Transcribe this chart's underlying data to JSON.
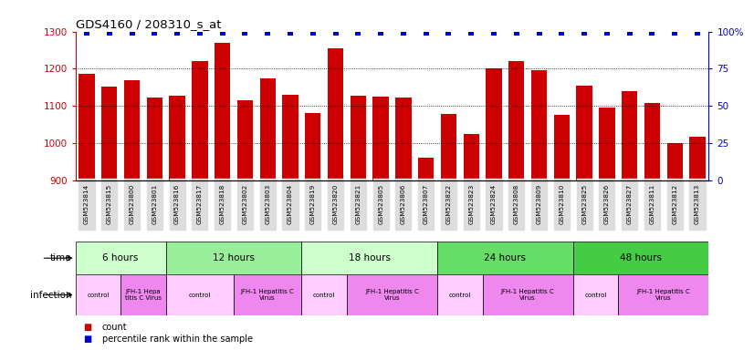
{
  "title": "GDS4160 / 208310_s_at",
  "samples": [
    "GSM523814",
    "GSM523815",
    "GSM523800",
    "GSM523801",
    "GSM523816",
    "GSM523817",
    "GSM523818",
    "GSM523802",
    "GSM523803",
    "GSM523804",
    "GSM523819",
    "GSM523820",
    "GSM523821",
    "GSM523805",
    "GSM523806",
    "GSM523807",
    "GSM523822",
    "GSM523823",
    "GSM523824",
    "GSM523808",
    "GSM523809",
    "GSM523810",
    "GSM523825",
    "GSM523826",
    "GSM523827",
    "GSM523811",
    "GSM523812",
    "GSM523813"
  ],
  "counts": [
    1185,
    1152,
    1170,
    1122,
    1128,
    1220,
    1270,
    1115,
    1175,
    1130,
    1080,
    1255,
    1128,
    1125,
    1122,
    960,
    1078,
    1025,
    1200,
    1220,
    1195,
    1075,
    1155,
    1095,
    1140,
    1108,
    1000,
    1018
  ],
  "percentile": [
    99,
    99,
    99,
    99,
    99,
    99,
    99,
    99,
    99,
    99,
    99,
    99,
    99,
    99,
    99,
    99,
    99,
    99,
    99,
    99,
    99,
    99,
    99,
    99,
    99,
    99,
    99,
    99
  ],
  "bar_color": "#cc0000",
  "dot_color": "#0000cc",
  "ylim_left": [
    900,
    1300
  ],
  "ylim_right": [
    0,
    100
  ],
  "yticks_left": [
    900,
    1000,
    1100,
    1200,
    1300
  ],
  "yticks_right": [
    0,
    25,
    50,
    75,
    100
  ],
  "dotted_lines": [
    1000,
    1100,
    1200
  ],
  "time_groups": [
    {
      "label": "6 hours",
      "start": 0,
      "end": 4,
      "color": "#ccffcc"
    },
    {
      "label": "12 hours",
      "start": 4,
      "end": 10,
      "color": "#99ee99"
    },
    {
      "label": "18 hours",
      "start": 10,
      "end": 16,
      "color": "#ccffcc"
    },
    {
      "label": "24 hours",
      "start": 16,
      "end": 22,
      "color": "#66dd66"
    },
    {
      "label": "48 hours",
      "start": 22,
      "end": 28,
      "color": "#44cc44"
    }
  ],
  "infection_groups": [
    {
      "label": "control",
      "start": 0,
      "end": 2,
      "color": "#ffccff"
    },
    {
      "label": "JFH-1 Hepa\ntitis C Virus",
      "start": 2,
      "end": 4,
      "color": "#ee88ee"
    },
    {
      "label": "control",
      "start": 4,
      "end": 7,
      "color": "#ffccff"
    },
    {
      "label": "JFH-1 Hepatitis C\nVirus",
      "start": 7,
      "end": 10,
      "color": "#ee88ee"
    },
    {
      "label": "control",
      "start": 10,
      "end": 12,
      "color": "#ffccff"
    },
    {
      "label": "JFH-1 Hepatitis C\nVirus",
      "start": 12,
      "end": 16,
      "color": "#ee88ee"
    },
    {
      "label": "control",
      "start": 16,
      "end": 18,
      "color": "#ffccff"
    },
    {
      "label": "JFH-1 Hepatitis C\nVirus",
      "start": 18,
      "end": 22,
      "color": "#ee88ee"
    },
    {
      "label": "control",
      "start": 22,
      "end": 24,
      "color": "#ffccff"
    },
    {
      "label": "JFH-1 Hepatitis C\nVirus",
      "start": 24,
      "end": 28,
      "color": "#ee88ee"
    }
  ],
  "legend_count_color": "#cc0000",
  "legend_dot_color": "#0000cc",
  "background_color": "#ffffff",
  "xticklabel_bg": "#dddddd"
}
